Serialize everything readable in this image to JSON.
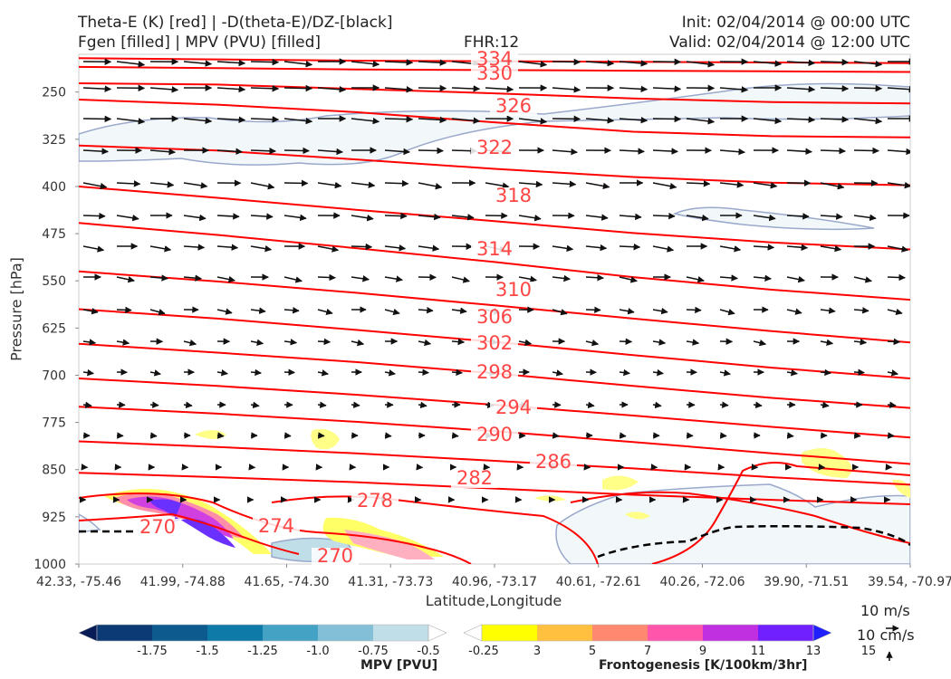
{
  "header": {
    "left_line1": "Theta-E (K) [red] | -D(theta-E)/DZ-[black]",
    "left_line2": "Fgen [filled] | MPV (PVU) [filled]",
    "center": "FHR:12",
    "right_line1": "Init: 02/04/2014 @ 00:00 UTC",
    "right_line2": "Valid: 02/04/2014 @ 12:00 UTC"
  },
  "chart_data": {
    "type": "contour",
    "xlabel": "Latitude,Longitude",
    "ylabel": "Pressure [hPa]",
    "y_ticks": [
      250,
      325,
      400,
      475,
      550,
      625,
      700,
      775,
      850,
      925,
      1000
    ],
    "ylim": [
      1000,
      190
    ],
    "x_ticks": [
      "42.33, -75.46",
      "41.99, -74.88",
      "41.65, -74.30",
      "41.31, -73.73",
      "40.96, -73.17",
      "40.61, -72.61",
      "40.26, -72.06",
      "39.90, -71.51",
      "39.54, -70.97"
    ],
    "theta_e_contours": {
      "color": "#ff0000",
      "labeled_levels": [
        334,
        330,
        326,
        322,
        318,
        314,
        310,
        306,
        302,
        298,
        294,
        290,
        286,
        282,
        278,
        274,
        270,
        270
      ],
      "lines": [
        {
          "level": 334,
          "p": [
            196,
            198,
            200,
            201,
            202,
            203,
            204
          ]
        },
        {
          "level": 330,
          "p": [
            210,
            212,
            214,
            215,
            216,
            217,
            218
          ]
        },
        {
          "level": 326,
          "p": [
            236,
            238,
            245,
            252,
            260,
            266,
            268
          ]
        },
        {
          "level": 322,
          "p": [
            262,
            270,
            282,
            298,
            313,
            320,
            322
          ]
        },
        {
          "level": 318,
          "p": [
            335,
            343,
            357,
            372,
            385,
            394,
            398
          ]
        },
        {
          "level": 314,
          "p": [
            400,
            418,
            437,
            455,
            474,
            489,
            500
          ]
        },
        {
          "level": 310,
          "p": [
            458,
            477,
            498,
            520,
            544,
            564,
            580
          ]
        },
        {
          "level": 306,
          "p": [
            535,
            551,
            569,
            589,
            610,
            630,
            648
          ]
        },
        {
          "level": 302,
          "p": [
            595,
            610,
            628,
            647,
            668,
            688,
            705
          ]
        },
        {
          "level": 298,
          "p": [
            650,
            664,
            679,
            697,
            717,
            736,
            752
          ]
        },
        {
          "level": 294,
          "p": [
            705,
            717,
            731,
            747,
            764,
            782,
            799
          ]
        },
        {
          "level": 290,
          "p": [
            750,
            761,
            774,
            789,
            806,
            824,
            841
          ]
        },
        {
          "level": 286,
          "p": [
            805,
            814,
            824,
            836,
            848,
            862,
            874
          ]
        },
        {
          "level": 282,
          "p": [
            855,
            862,
            870,
            880,
            890,
            898,
            905
          ]
        }
      ]
    },
    "dthetae_dz_contour": {
      "color": "#000000",
      "style": "dashed",
      "label": ""
    },
    "mpv_colorbar": {
      "title": "MPV [PVU]",
      "ticks": [
        "-1.75",
        "-1.5",
        "-1.25",
        "-1.0",
        "-0.75",
        "-0.5",
        "-0.25"
      ],
      "colors": [
        "#081d58",
        "#0c3a74",
        "#0d5a8f",
        "#0e7aa8",
        "#44a2c5",
        "#84bfd8",
        "#bfdee8",
        "#ffffff"
      ]
    },
    "fgen_colorbar": {
      "title": "Frontogenesis [K/100km/3hr]",
      "ticks": [
        "3",
        "5",
        "7",
        "9",
        "11",
        "13",
        "15"
      ],
      "colors": [
        "#ffffff",
        "#ffff00",
        "#ffc040",
        "#ff8870",
        "#ff55aa",
        "#c030e0",
        "#7020ff",
        "#2020ff"
      ]
    },
    "wind_reference": {
      "u_label": "10 m/s",
      "w_label": "10 cm/s"
    }
  },
  "colors": {
    "theta_e": "#ff0000",
    "mpv_outline": "#9aa8cc",
    "mpv_fill": "#f2f8f9"
  }
}
